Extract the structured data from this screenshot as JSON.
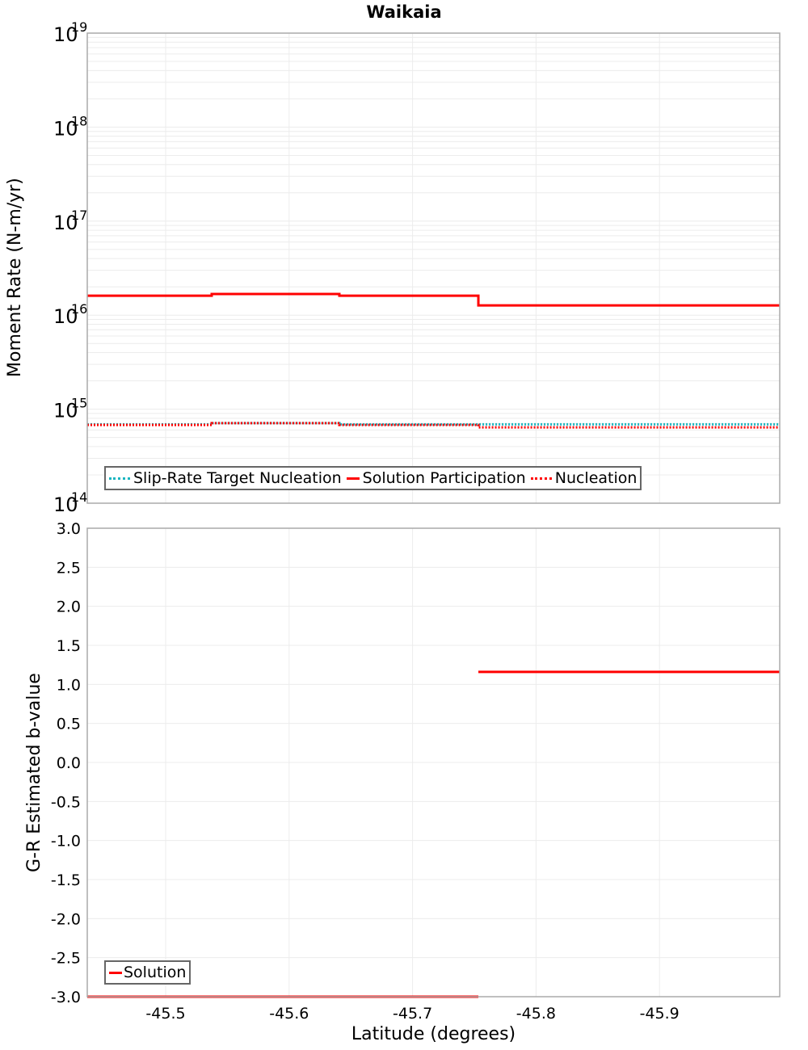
{
  "title": "Waikaia",
  "colors": {
    "solution": "#ff0000",
    "slip_rate_target": "#1ab5c0",
    "nucleation": "#ff0000",
    "grid": "#e8e8e8",
    "frame": "#aaaaaa"
  },
  "chart_data": [
    {
      "type": "line",
      "subtype": "step",
      "title": "Waikaia",
      "xlabel": "Latitude (degrees)",
      "ylabel": "Moment Rate (N-m/yr)",
      "yscale": "log",
      "ylim": [
        100000000000000.0,
        1e+19
      ],
      "xlim": [
        -45.4365,
        -45.9974
      ],
      "x_inverted_display": true,
      "ytick_labels": [
        {
          "base": "10",
          "exp": "19"
        },
        {
          "base": "10",
          "exp": "18"
        },
        {
          "base": "10",
          "exp": "17"
        },
        {
          "base": "10",
          "exp": "16"
        },
        {
          "base": "10",
          "exp": "15"
        },
        {
          "base": "10",
          "exp": "14"
        }
      ],
      "segment_edges": [
        -45.4365,
        -45.5373,
        -45.6407,
        -45.7533,
        -45.875,
        -45.9974
      ],
      "legend": [
        "Slip-Rate Target Nucleation",
        "Solution Participation",
        "Nucleation"
      ],
      "legend_position": "lower-left",
      "grid": true,
      "series": [
        {
          "name": "Slip-Rate Target Nucleation",
          "style": "dotted",
          "color": "#1ab5c0",
          "values": [
            690000000000000.0,
            710000000000000.0,
            690000000000000.0,
            690000000000000.0,
            690000000000000.0
          ]
        },
        {
          "name": "Solution Participation",
          "style": "solid",
          "color": "#ff0000",
          "values": [
            1.61e+16,
            1.68e+16,
            1.61e+16,
            1.27e+16,
            1.27e+16
          ]
        },
        {
          "name": "Nucleation",
          "style": "dotted",
          "color": "#ff0000",
          "values": [
            680000000000000.0,
            710000000000000.0,
            680000000000000.0,
            640000000000000.0,
            640000000000000.0
          ]
        }
      ]
    },
    {
      "type": "line",
      "subtype": "step",
      "xlabel": "Latitude (degrees)",
      "ylabel": "G-R Estimated b-value",
      "ylim": [
        -3.0,
        3.0
      ],
      "xlim": [
        -45.4365,
        -45.9974
      ],
      "yticks": [
        "3.0",
        "2.5",
        "2.0",
        "1.5",
        "1.0",
        "0.5",
        "0.0",
        "-0.5",
        "-1.0",
        "-1.5",
        "-2.0",
        "-2.5",
        "-3.0"
      ],
      "xticks": [
        "-45.5",
        "-45.6",
        "-45.7",
        "-45.8",
        "-45.9"
      ],
      "segment_edges": [
        -45.4365,
        -45.5373,
        -45.6407,
        -45.7533,
        -45.875,
        -45.9974
      ],
      "legend": [
        "Solution"
      ],
      "legend_position": "lower-left",
      "grid": true,
      "series": [
        {
          "name": "Solution",
          "style": "solid",
          "color": "#ff0000",
          "values": [
            -3.0,
            -3.0,
            -3.0,
            1.16,
            1.16
          ]
        }
      ]
    }
  ],
  "top_plot": {
    "ylabel": "Moment Rate (N-m/yr)",
    "legend": {
      "items": [
        {
          "label": "Slip-Rate Target Nucleation"
        },
        {
          "label": "Solution Participation"
        },
        {
          "label": "Nucleation"
        }
      ]
    }
  },
  "bottom_plot": {
    "ylabel": "G-R Estimated b-value",
    "xlabel": "Latitude (degrees)",
    "legend": {
      "items": [
        {
          "label": "Solution"
        }
      ]
    }
  }
}
